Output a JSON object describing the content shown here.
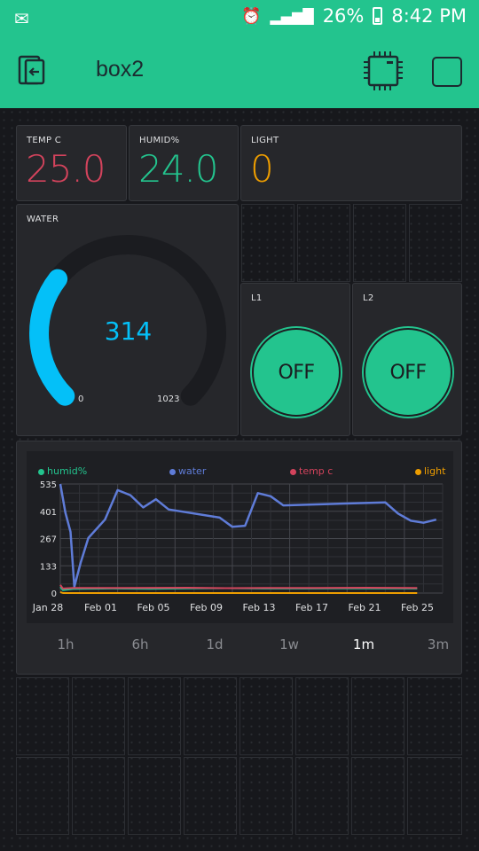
{
  "status": {
    "battery": "26%",
    "time": "8:42 PM"
  },
  "app": {
    "title": "box2"
  },
  "colors": {
    "accent": "#23c48e",
    "temp": "#d3435c",
    "humid": "#23c48e",
    "light": "#ed9d00",
    "water": "#04c0f8"
  },
  "tiles": {
    "temp": {
      "label": "TEMP C",
      "value": "25.0"
    },
    "humid": {
      "label": "HUMID%",
      "value": "24.0"
    },
    "light": {
      "label": "LIGHT",
      "value": "0"
    },
    "water": {
      "label": "WATER",
      "value": 314,
      "value_text": "314",
      "min": "0",
      "max": "1023"
    },
    "l1": {
      "label": "L1",
      "button": "OFF"
    },
    "l2": {
      "label": "L2",
      "button": "OFF"
    }
  },
  "chart_data": {
    "type": "line",
    "x_ticks": [
      "Jan 28",
      "Feb 01",
      "Feb 05",
      "Feb 09",
      "Feb 13",
      "Feb 17",
      "Feb 21",
      "Feb 25"
    ],
    "y_ticks": [
      "535",
      "401",
      "267",
      "133",
      "0"
    ],
    "ylim": [
      0,
      535
    ],
    "legend_placement": "top",
    "grid": true,
    "series": [
      {
        "name": "humid%",
        "color": "#23c48e",
        "points": [
          [
            0,
            30
          ],
          [
            0.2,
            14
          ],
          [
            1,
            20
          ],
          [
            4,
            22
          ],
          [
            7,
            21
          ],
          [
            10,
            23
          ],
          [
            13,
            24
          ],
          [
            16,
            22
          ],
          [
            19,
            22
          ],
          [
            24,
            23
          ],
          [
            28,
            22
          ]
        ]
      },
      {
        "name": "water",
        "color": "#5f7cd8",
        "points": [
          [
            0,
            535
          ],
          [
            0.4,
            395
          ],
          [
            0.8,
            300
          ],
          [
            1.1,
            30
          ],
          [
            1.6,
            150
          ],
          [
            2.2,
            270
          ],
          [
            3.5,
            360
          ],
          [
            4.5,
            505
          ],
          [
            5.5,
            480
          ],
          [
            6.5,
            420
          ],
          [
            7.5,
            460
          ],
          [
            8.5,
            410
          ],
          [
            12.5,
            370
          ],
          [
            13.5,
            325
          ],
          [
            14.5,
            330
          ],
          [
            15.5,
            490
          ],
          [
            16.5,
            475
          ],
          [
            17.5,
            430
          ],
          [
            25.5,
            445
          ],
          [
            26.5,
            390
          ],
          [
            27.5,
            355
          ],
          [
            28.5,
            345
          ],
          [
            29.5,
            360
          ]
        ]
      },
      {
        "name": "temp c",
        "color": "#d3435c",
        "points": [
          [
            0,
            40
          ],
          [
            0.2,
            22
          ],
          [
            1,
            25
          ],
          [
            5,
            25
          ],
          [
            10,
            26
          ],
          [
            13,
            24
          ],
          [
            16,
            25
          ],
          [
            20,
            25
          ],
          [
            24,
            26
          ],
          [
            28,
            25
          ]
        ]
      },
      {
        "name": "light",
        "color": "#ed9d00",
        "points": [
          [
            0,
            5
          ],
          [
            0.2,
            0
          ],
          [
            1,
            0
          ],
          [
            5,
            0
          ],
          [
            10,
            0
          ],
          [
            15,
            0
          ],
          [
            20,
            0
          ],
          [
            25,
            0
          ],
          [
            28,
            0
          ]
        ]
      }
    ]
  },
  "periods": [
    "1h",
    "6h",
    "1d",
    "1w",
    "1m",
    "3m"
  ],
  "active_period": "1m"
}
